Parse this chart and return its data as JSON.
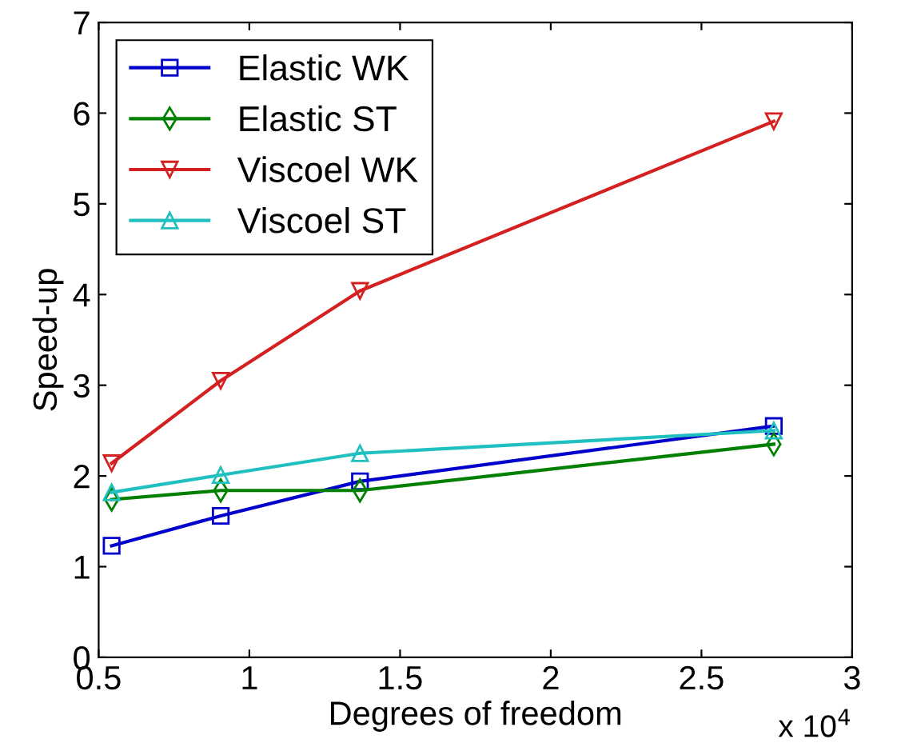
{
  "chart_data": {
    "type": "line",
    "xlabel": "Degrees of freedom",
    "ylabel": "Speed-up",
    "annotations": [
      "x 10$^{4}$"
    ],
    "xlim": [
      0.5,
      3
    ],
    "xticks": [
      0.5,
      1,
      1.5,
      2,
      2.5,
      3
    ],
    "ylim": [
      0,
      7
    ],
    "yticks": [
      0,
      1,
      2,
      3,
      4,
      5,
      6,
      7
    ],
    "grid": false,
    "legend": "top left",
    "line_style": "solid",
    "series": [
      {
        "name": "Elastic WK",
        "color": "#0000cc",
        "marker": "square",
        "x": [
          0.543,
          0.905,
          1.367,
          2.74
        ],
        "values": [
          1.23,
          1.56,
          1.94,
          2.55
        ]
      },
      {
        "name": "Elastic ST",
        "color": "#008000",
        "marker": "diamond",
        "x": [
          0.543,
          0.905,
          1.367,
          2.74
        ],
        "values": [
          1.74,
          1.84,
          1.84,
          2.35
        ]
      },
      {
        "name": "Viscoel WK",
        "color": "#d42020",
        "marker": "triangle_down",
        "x": [
          0.543,
          0.905,
          1.367,
          2.74
        ],
        "values": [
          2.14,
          3.05,
          4.04,
          5.91
        ]
      },
      {
        "name": "Viscoel ST",
        "color": "#20c0c0",
        "marker": "triangle",
        "x": [
          0.543,
          0.905,
          1.367,
          2.74
        ],
        "values": [
          1.82,
          2.01,
          2.25,
          2.5
        ]
      }
    ]
  }
}
